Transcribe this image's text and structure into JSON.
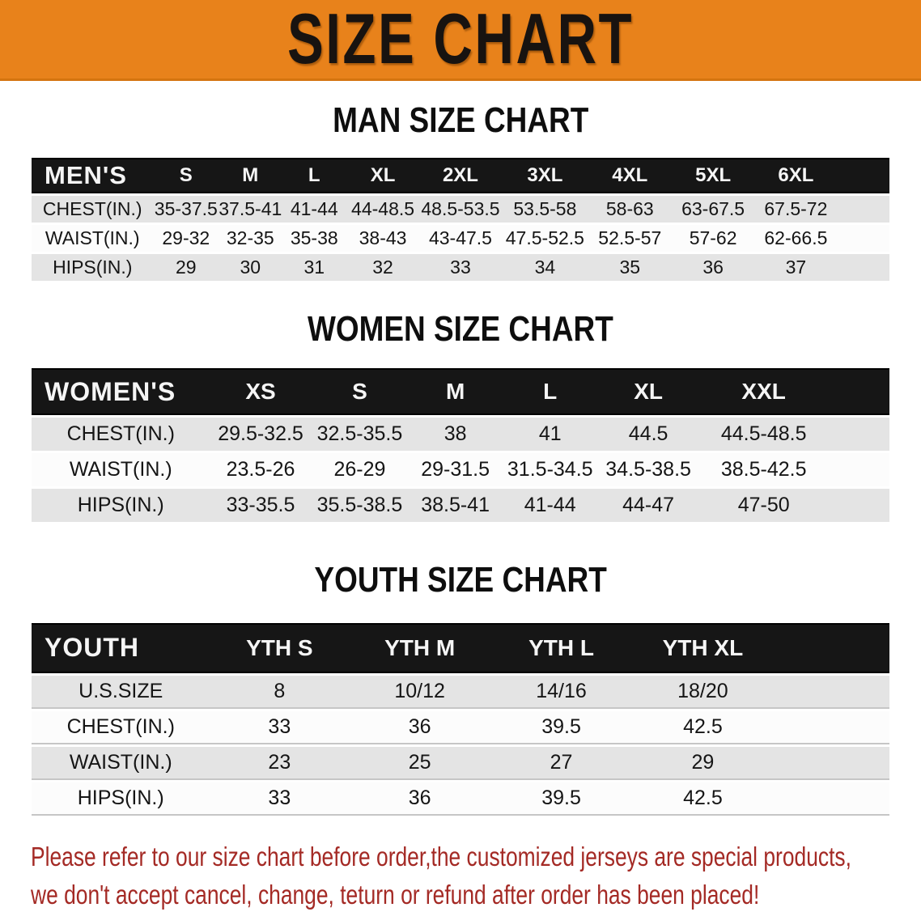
{
  "banner": {
    "title": "SIZE CHART"
  },
  "sections": [
    {
      "heading": "MAN SIZE CHART",
      "table": {
        "header": [
          "MEN'S",
          "S",
          "M",
          "L",
          "XL",
          "2XL",
          "3XL",
          "4XL",
          "5XL",
          "6XL"
        ],
        "rows": [
          {
            "label": "CHEST(IN.)",
            "values": [
              "35-37.5",
              "37.5-41",
              "41-44",
              "44-48.5",
              "48.5-53.5",
              "53.5-58",
              "58-63",
              "63-67.5",
              "67.5-72"
            ]
          },
          {
            "label": "WAIST(IN.)",
            "values": [
              "29-32",
              "32-35",
              "35-38",
              "38-43",
              "43-47.5",
              "47.5-52.5",
              "52.5-57",
              "57-62",
              "62-66.5"
            ]
          },
          {
            "label": "HIPS(IN.)",
            "values": [
              "29",
              "30",
              "31",
              "32",
              "33",
              "34",
              "35",
              "36",
              "37"
            ]
          }
        ]
      }
    },
    {
      "heading": "WOMEN SIZE CHART",
      "table": {
        "header": [
          "WOMEN'S",
          "XS",
          "S",
          "M",
          "L",
          "XL",
          "XXL"
        ],
        "rows": [
          {
            "label": "CHEST(IN.)",
            "values": [
              "29.5-32.5",
              "32.5-35.5",
              "38",
              "41",
              "44.5",
              "44.5-48.5"
            ]
          },
          {
            "label": "WAIST(IN.)",
            "values": [
              "23.5-26",
              "26-29",
              "29-31.5",
              "31.5-34.5",
              "34.5-38.5",
              "38.5-42.5"
            ]
          },
          {
            "label": "HIPS(IN.)",
            "values": [
              "33-35.5",
              "35.5-38.5",
              "38.5-41",
              "41-44",
              "44-47",
              "47-50"
            ]
          }
        ]
      }
    },
    {
      "heading": "YOUTH SIZE CHART",
      "table": {
        "header": [
          "YOUTH",
          "YTH S",
          "YTH M",
          "YTH L",
          "YTH XL"
        ],
        "rows": [
          {
            "label": "U.S.SIZE",
            "values": [
              "8",
              "10/12",
              "14/16",
              "18/20"
            ]
          },
          {
            "label": "CHEST(IN.)",
            "values": [
              "33",
              "36",
              "39.5",
              "42.5"
            ]
          },
          {
            "label": "WAIST(IN.)",
            "values": [
              "23",
              "25",
              "27",
              "29"
            ]
          },
          {
            "label": "HIPS(IN.)",
            "values": [
              "33",
              "36",
              "39.5",
              "42.5"
            ]
          }
        ]
      }
    }
  ],
  "disclaimer": {
    "lines": [
      "Please refer to our size chart before order,the customized jerseys are special products,",
      "we don't accept cancel, change, teturn or refund after order has been placed!"
    ]
  },
  "colors": {
    "banner_bg": "#E8821B",
    "table_header_bg": "#161616",
    "row_gray": "#E4E4E4",
    "disclaimer_red": "#A42A25"
  }
}
